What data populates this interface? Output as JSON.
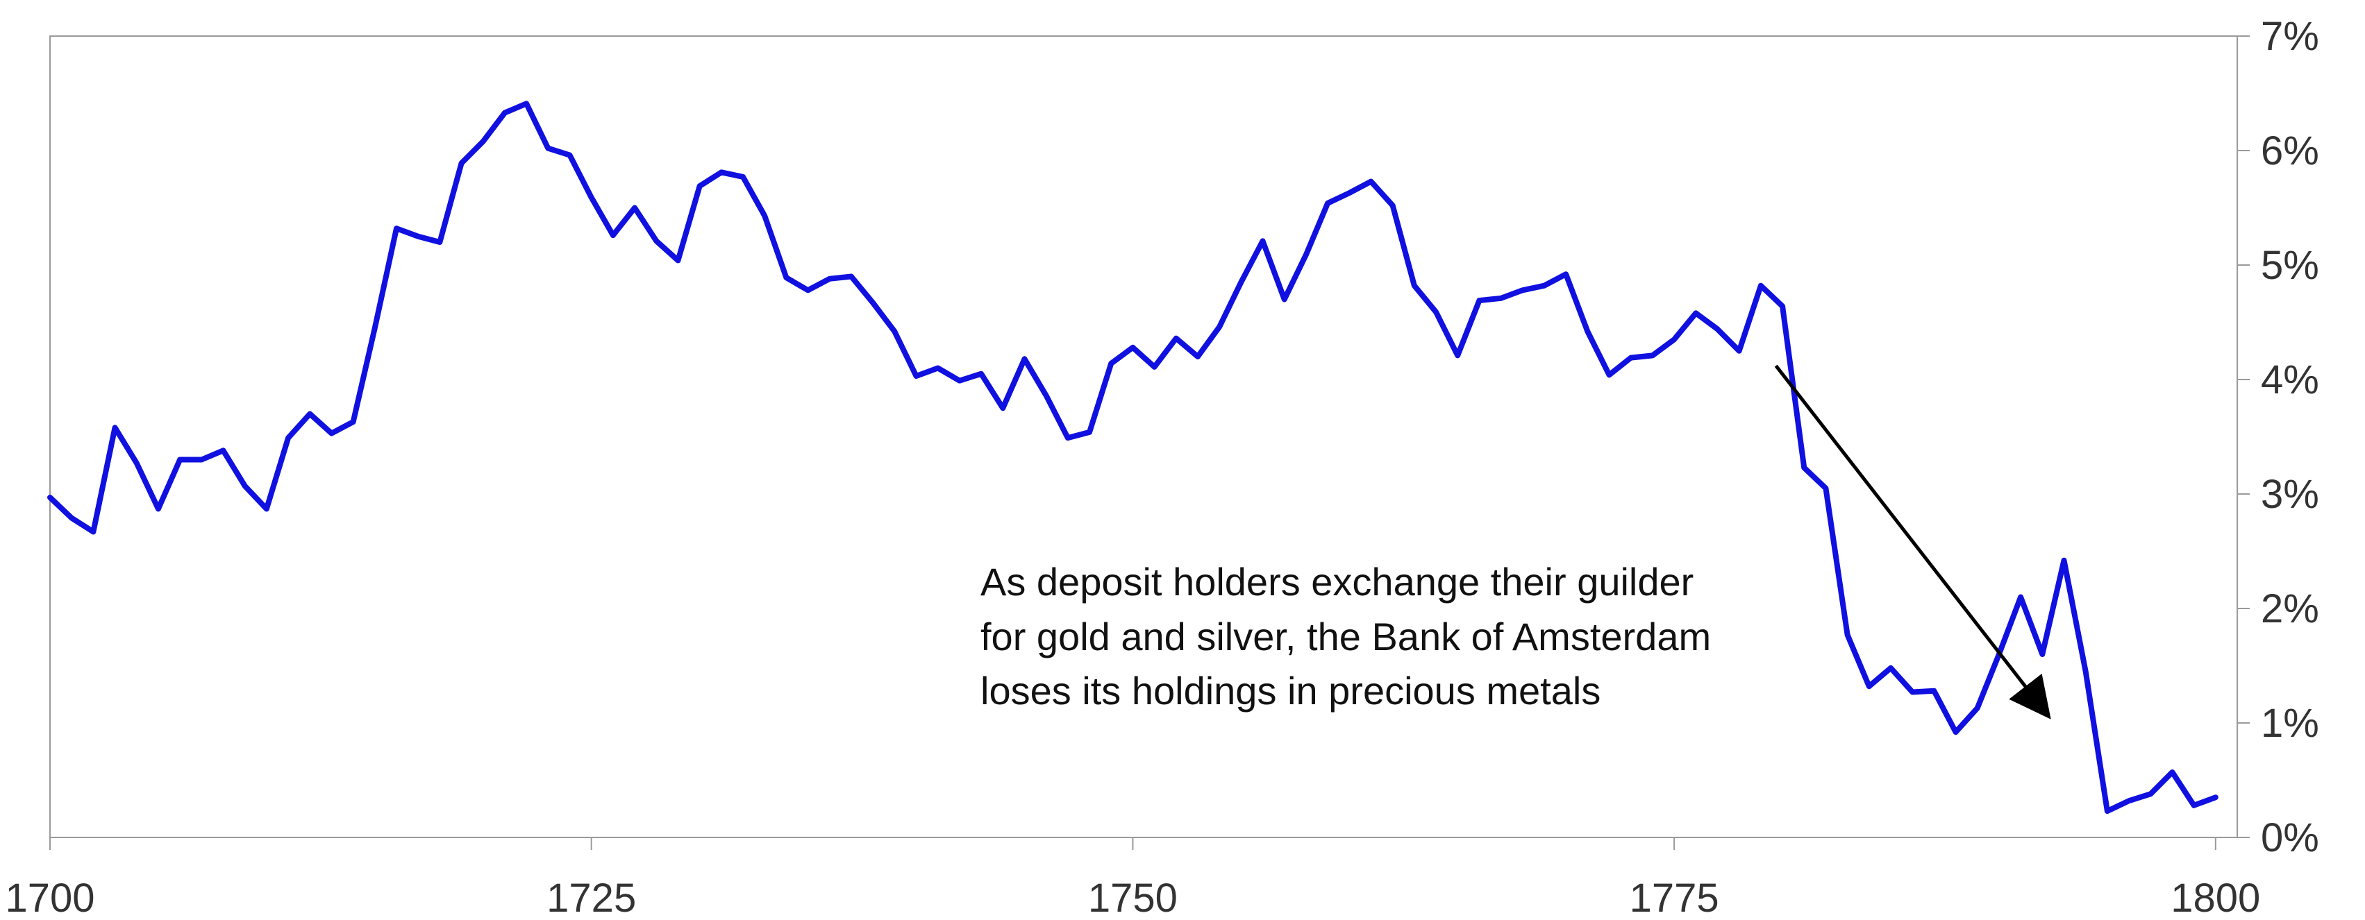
{
  "chart_data": {
    "type": "line",
    "title": "",
    "xlabel": "",
    "ylabel": "",
    "xlim": [
      1700,
      1801
    ],
    "ylim": [
      0,
      7
    ],
    "grid": false,
    "x_ticks": [
      {
        "value": 1700,
        "label": "1700"
      },
      {
        "value": 1725,
        "label": "1725"
      },
      {
        "value": 1750,
        "label": "1750"
      },
      {
        "value": 1775,
        "label": "1775"
      },
      {
        "value": 1800,
        "label": "1800"
      }
    ],
    "y_ticks": [
      {
        "value": 0,
        "label": "0%"
      },
      {
        "value": 1,
        "label": "1%"
      },
      {
        "value": 2,
        "label": "2%"
      },
      {
        "value": 3,
        "label": "3%"
      },
      {
        "value": 4,
        "label": "4%"
      },
      {
        "value": 5,
        "label": "5%"
      },
      {
        "value": 6,
        "label": "6%"
      },
      {
        "value": 7,
        "label": "7%"
      }
    ],
    "series": [
      {
        "color": "#1010e0",
        "x": [
          1700,
          1701,
          1702,
          1703,
          1704,
          1705,
          1706,
          1707,
          1708,
          1709,
          1710,
          1711,
          1712,
          1713,
          1714,
          1715,
          1716,
          1717,
          1718,
          1719,
          1720,
          1721,
          1722,
          1723,
          1724,
          1725,
          1726,
          1727,
          1728,
          1729,
          1730,
          1731,
          1732,
          1733,
          1734,
          1735,
          1736,
          1737,
          1738,
          1739,
          1740,
          1741,
          1742,
          1743,
          1744,
          1745,
          1746,
          1747,
          1748,
          1749,
          1750,
          1751,
          1752,
          1753,
          1754,
          1755,
          1756,
          1757,
          1758,
          1759,
          1760,
          1761,
          1762,
          1763,
          1764,
          1765,
          1766,
          1767,
          1768,
          1769,
          1770,
          1771,
          1772,
          1773,
          1774,
          1775,
          1776,
          1777,
          1778,
          1779,
          1780,
          1781,
          1782,
          1783,
          1784,
          1785,
          1786,
          1787,
          1788,
          1789,
          1790,
          1791,
          1792,
          1793,
          1794,
          1795,
          1796,
          1797,
          1798,
          1799,
          1800
        ],
        "y": [
          2.97,
          2.79,
          2.67,
          3.58,
          3.27,
          2.87,
          3.3,
          3.3,
          3.38,
          3.07,
          2.87,
          3.49,
          3.7,
          3.53,
          3.63,
          4.45,
          5.32,
          5.25,
          5.2,
          5.89,
          6.08,
          6.33,
          6.41,
          6.02,
          5.96,
          5.59,
          5.26,
          5.5,
          5.21,
          5.04,
          5.69,
          5.81,
          5.77,
          5.43,
          4.89,
          4.78,
          4.88,
          4.9,
          4.67,
          4.42,
          4.03,
          4.1,
          3.99,
          4.05,
          3.75,
          4.18,
          3.86,
          3.49,
          3.54,
          4.14,
          4.28,
          4.11,
          4.36,
          4.2,
          4.46,
          4.85,
          5.21,
          4.7,
          5.09,
          5.54,
          5.63,
          5.73,
          5.52,
          4.82,
          4.59,
          4.21,
          4.69,
          4.71,
          4.78,
          4.82,
          4.92,
          4.42,
          4.04,
          4.19,
          4.21,
          4.35,
          4.58,
          4.44,
          4.25,
          4.82,
          4.64,
          3.23,
          3.05,
          1.77,
          1.32,
          1.48,
          1.27,
          1.28,
          0.92,
          1.13,
          1.6,
          2.1,
          1.6,
          2.42,
          1.45,
          0.23,
          0.32,
          0.38,
          0.57,
          0.28,
          0.35
        ]
      }
    ],
    "annotation": {
      "lines": [
        "As deposit holders exchange their guilder",
        "for gold and silver, the Bank of Amsterdam",
        "loses its holdings in precious metals"
      ],
      "arrow_from": {
        "x": 1779.7,
        "y": 4.12
      },
      "arrow_to": {
        "x": 1792.2,
        "y": 1.08
      }
    }
  }
}
